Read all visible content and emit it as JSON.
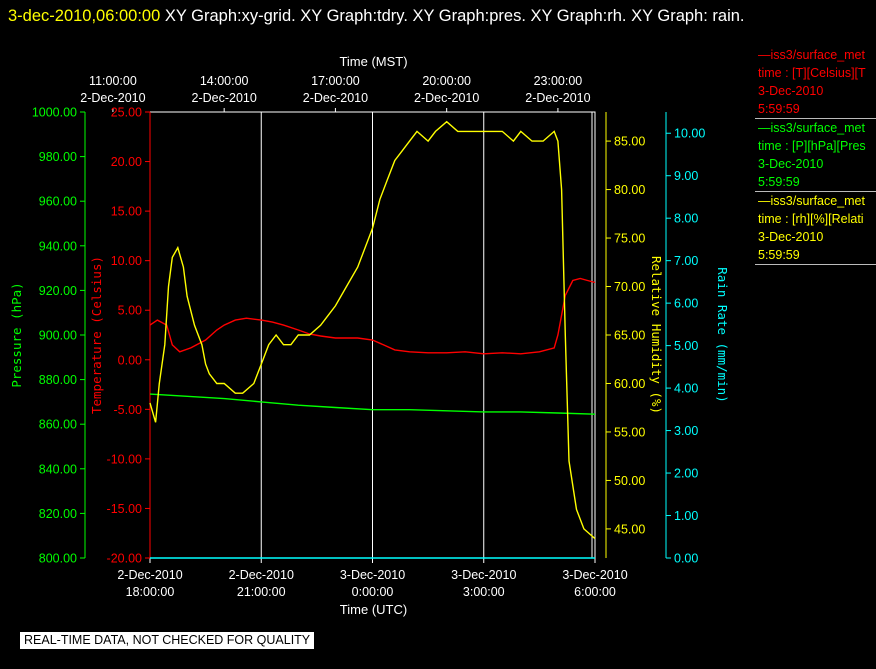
{
  "header": {
    "timestamp": "3-dec-2010,06:00:00",
    "title_rest": "  XY Graph:xy-grid.  XY Graph:tdry.  XY Graph:pres.  XY Graph:rh.  XY Graph: rain."
  },
  "footer": {
    "label": "REAL-TIME DATA, NOT CHECKED FOR QUALITY"
  },
  "legend": [
    {
      "line1": "—iss3/surface_met",
      "line2": "time : [T][Celsius][T",
      "line3": "3-Dec-2010",
      "line4": "5:59:59",
      "color": "#ff0000"
    },
    {
      "line1": "—iss3/surface_met",
      "line2": "time : [P][hPa][Pres",
      "line3": "3-Dec-2010",
      "line4": "5:59:59",
      "color": "#00ff00"
    },
    {
      "line1": "—iss3/surface_met",
      "line2": "time : [rh][%][Relati",
      "line3": "3-Dec-2010",
      "line4": "5:59:59",
      "color": "#ffff00"
    }
  ],
  "chart_data": {
    "type": "line",
    "top_axis": {
      "label": "Time (MST)",
      "ticks": [
        {
          "h": 17,
          "t1": "11:00:00",
          "t2": "2-Dec-2010"
        },
        {
          "h": 20,
          "t1": "14:00:00",
          "t2": "2-Dec-2010"
        },
        {
          "h": 23,
          "t1": "17:00:00",
          "t2": "2-Dec-2010"
        },
        {
          "h": 26,
          "t1": "20:00:00",
          "t2": "2-Dec-2010"
        },
        {
          "h": 29,
          "t1": "23:00:00",
          "t2": "2-Dec-2010"
        }
      ]
    },
    "bottom_axis": {
      "label": "Time (UTC)",
      "ticks": [
        {
          "h": 18,
          "t1": "2-Dec-2010",
          "t2": "18:00:00"
        },
        {
          "h": 21,
          "t1": "2-Dec-2010",
          "t2": "21:00:00"
        },
        {
          "h": 24,
          "t1": "3-Dec-2010",
          "t2": "0:00:00"
        },
        {
          "h": 27,
          "t1": "3-Dec-2010",
          "t2": "3:00:00"
        },
        {
          "h": 30,
          "t1": "3-Dec-2010",
          "t2": "6:00:00"
        }
      ]
    },
    "x_range_hours_utc": [
      18,
      30
    ],
    "axes": {
      "pressure": {
        "label": "Pressure (hPa)",
        "color": "#00ff00",
        "min": 800,
        "max": 1000,
        "ticks": [
          "800.00",
          "820.00",
          "840.00",
          "860.00",
          "880.00",
          "900.00",
          "920.00",
          "940.00",
          "960.00",
          "980.00",
          "1000.00"
        ]
      },
      "temperature": {
        "label": "Temperature (Celsius)",
        "color": "#ff0000",
        "min": -20,
        "max": 25,
        "ticks": [
          "-20.00",
          "-15.00",
          "-10.00",
          "-5.00",
          "0.00",
          "5.00",
          "10.00",
          "15.00",
          "20.00",
          "25.00"
        ]
      },
      "rh": {
        "label": "Relative Humidity (%)",
        "color": "#ffff00",
        "min": 42,
        "max": 88,
        "ticks": [
          "45.00",
          "50.00",
          "55.00",
          "60.00",
          "65.00",
          "70.00",
          "75.00",
          "80.00",
          "85.00"
        ]
      },
      "rain": {
        "label": "Rain Rate (mm/min)",
        "color": "#00ffff",
        "min": 0,
        "max": 10.5,
        "ticks": [
          "0.00",
          "1.00",
          "2.00",
          "3.00",
          "4.00",
          "5.00",
          "6.00",
          "7.00",
          "8.00",
          "9.00",
          "10.00"
        ]
      }
    },
    "series": [
      {
        "name": "Temperature",
        "axis": "temperature",
        "color": "#ff0000",
        "x": [
          18.0,
          18.2,
          18.45,
          18.6,
          18.8,
          19.1,
          19.5,
          19.8,
          20.0,
          20.3,
          20.6,
          21.0,
          21.3,
          21.6,
          22.0,
          22.3,
          22.6,
          23.0,
          23.3,
          23.6,
          24.0,
          24.3,
          24.6,
          25.0,
          25.5,
          26.0,
          26.5,
          27.0,
          27.5,
          28.0,
          28.5,
          28.9,
          29.0,
          29.2,
          29.4,
          29.6,
          29.8,
          30.0
        ],
        "y": [
          3.5,
          4.0,
          3.5,
          1.5,
          0.8,
          1.2,
          2.0,
          3.0,
          3.5,
          4.0,
          4.2,
          4.0,
          3.8,
          3.5,
          3.0,
          2.6,
          2.4,
          2.2,
          2.2,
          2.2,
          2.0,
          1.5,
          1.0,
          0.8,
          0.7,
          0.7,
          0.8,
          0.6,
          0.7,
          0.6,
          0.8,
          1.2,
          2.5,
          6.5,
          8.0,
          8.2,
          8.0,
          7.8
        ]
      },
      {
        "name": "Pressure",
        "axis": "pressure",
        "color": "#00ff00",
        "x": [
          18.0,
          19.0,
          20.0,
          21.0,
          22.0,
          23.0,
          24.0,
          25.0,
          26.0,
          27.0,
          28.0,
          29.0,
          30.0
        ],
        "y": [
          873.5,
          872.5,
          871.5,
          870.0,
          868.5,
          867.5,
          866.5,
          866.5,
          866.0,
          865.5,
          865.5,
          865.0,
          864.5
        ]
      },
      {
        "name": "Relative Humidity",
        "axis": "rh",
        "color": "#ffff00",
        "x": [
          18.0,
          18.15,
          18.25,
          18.4,
          18.5,
          18.6,
          18.75,
          18.9,
          19.0,
          19.2,
          19.4,
          19.5,
          19.6,
          19.8,
          20.0,
          20.3,
          20.5,
          20.8,
          21.0,
          21.2,
          21.4,
          21.6,
          21.8,
          22.0,
          22.3,
          22.6,
          22.8,
          23.0,
          23.3,
          23.6,
          24.0,
          24.2,
          24.4,
          24.6,
          24.8,
          25.0,
          25.2,
          25.5,
          25.7,
          26.0,
          26.3,
          26.6,
          26.9,
          27.2,
          27.5,
          27.8,
          28.0,
          28.3,
          28.6,
          28.9,
          29.0,
          29.1,
          29.2,
          29.3,
          29.5,
          29.7,
          30.0
        ],
        "y": [
          58,
          56,
          60,
          64,
          70,
          73,
          74,
          72,
          69,
          66,
          64,
          62,
          61,
          60,
          60,
          59,
          59,
          60,
          62,
          64,
          65,
          64,
          64,
          65,
          65,
          66,
          67,
          68,
          70,
          72,
          76,
          79,
          81,
          83,
          84,
          85,
          86,
          85,
          86,
          87,
          86,
          86,
          86,
          86,
          86,
          85,
          86,
          85,
          85,
          86,
          85,
          80,
          65,
          52,
          47,
          45,
          44
        ]
      },
      {
        "name": "Rain Rate",
        "axis": "rain",
        "color": "#00ffff",
        "x": [
          18.0,
          30.0
        ],
        "y": [
          0.0,
          0.0
        ]
      }
    ]
  }
}
